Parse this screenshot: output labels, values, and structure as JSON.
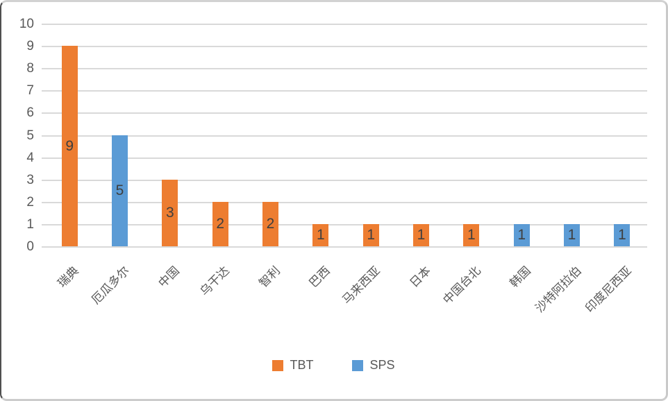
{
  "chart_data": {
    "type": "bar",
    "title": "",
    "xlabel": "",
    "ylabel": "",
    "categories": [
      "瑞典",
      "厄瓜多尔",
      "中国",
      "乌干达",
      "智利",
      "巴西",
      "马来西亚",
      "日本",
      "中国台北",
      "韩国",
      "沙特阿拉伯",
      "印度尼西亚"
    ],
    "values": [
      9,
      5,
      3,
      2,
      2,
      1,
      1,
      1,
      1,
      1,
      1,
      1
    ],
    "bar_series": [
      "TBT",
      "SPS",
      "TBT",
      "TBT",
      "TBT",
      "TBT",
      "TBT",
      "TBT",
      "TBT",
      "SPS",
      "SPS",
      "SPS"
    ],
    "data_labels": [
      "9",
      "5",
      "3",
      "2",
      "2",
      "1",
      "1",
      "1",
      "1",
      "1",
      "1",
      "1"
    ],
    "data_label_position": "center",
    "yticks": [
      "0",
      "1",
      "2",
      "3",
      "4",
      "5",
      "6",
      "7",
      "8",
      "9",
      "10"
    ],
    "ylim": [
      0,
      10
    ],
    "grid": true,
    "x_label_rotation_deg": 45,
    "legend_position": "bottom",
    "legend": [
      {
        "label": "TBT",
        "color": "#ED7D31"
      },
      {
        "label": "SPS",
        "color": "#5B9BD5"
      }
    ],
    "colors": {
      "gridline": "#D9D9D9",
      "axis_text": "#595959",
      "data_label": "#3F3F3F",
      "background": "#FFFFFF"
    }
  }
}
